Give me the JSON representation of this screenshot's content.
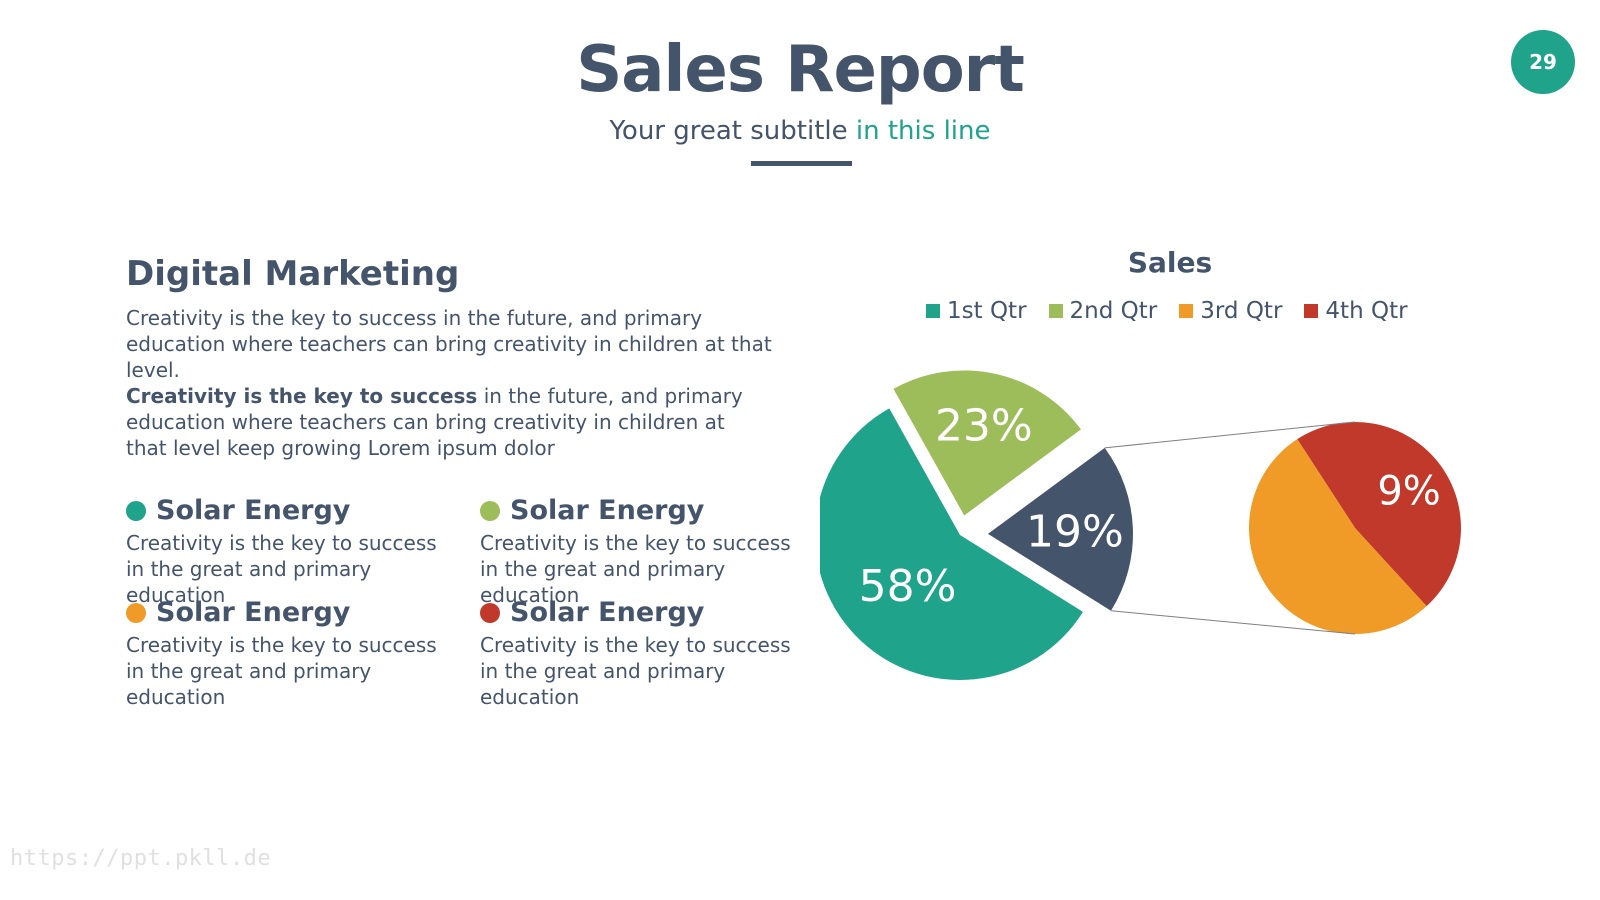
{
  "header": {
    "title": "Sales Report",
    "subtitle_prefix": "Your great subtitle",
    "subtitle_accent": "in this line",
    "page_number": "29"
  },
  "section": {
    "heading": "Digital Marketing",
    "paragraph1": "Creativity is the key to success in the future, and primary education where teachers can bring creativity in children at that level.",
    "paragraph2_bold": "Creativity is the key to success",
    "paragraph2_rest": " in the future, and primary education where teachers can bring creativity in children at that level keep growing Lorem ipsum dolor"
  },
  "features": [
    {
      "title": "Solar Energy",
      "text": "Creativity is the key to success in the great and primary education",
      "color": "#1fa38a"
    },
    {
      "title": "Solar Energy",
      "text": "Creativity is the key to success in the great and primary education",
      "color": "#9cbd5a"
    },
    {
      "title": "Solar Energy",
      "text": "Creativity is the key to success in the great and primary education",
      "color": "#f09b27"
    },
    {
      "title": "Solar Energy",
      "text": "Creativity is the key to success in the great and primary education",
      "color": "#c0392b"
    }
  ],
  "watermark": "https://ppt.pkll.de",
  "chart_data": {
    "type": "pie",
    "title": "Sales",
    "legend_position": "top",
    "categories": [
      "1st Qtr",
      "2nd Qtr",
      "3rd Qtr",
      "4th Qtr"
    ],
    "values": [
      58,
      23,
      19,
      9
    ],
    "colors": [
      "#1fa38a",
      "#9cbd5a",
      "#f09b27",
      "#c0392b"
    ],
    "main_pie": {
      "slices": [
        {
          "label": "58%",
          "value": 58,
          "color": "#1fa38a"
        },
        {
          "label": "23%",
          "value": 23,
          "color": "#9cbd5a"
        },
        {
          "label": "19%",
          "value": 19,
          "color": "#44546a"
        }
      ]
    },
    "sub_pie": {
      "slices": [
        {
          "label": "9%",
          "value": 9,
          "color": "#c0392b"
        },
        {
          "label": "",
          "value": 10,
          "color": "#f09b27"
        }
      ]
    }
  }
}
